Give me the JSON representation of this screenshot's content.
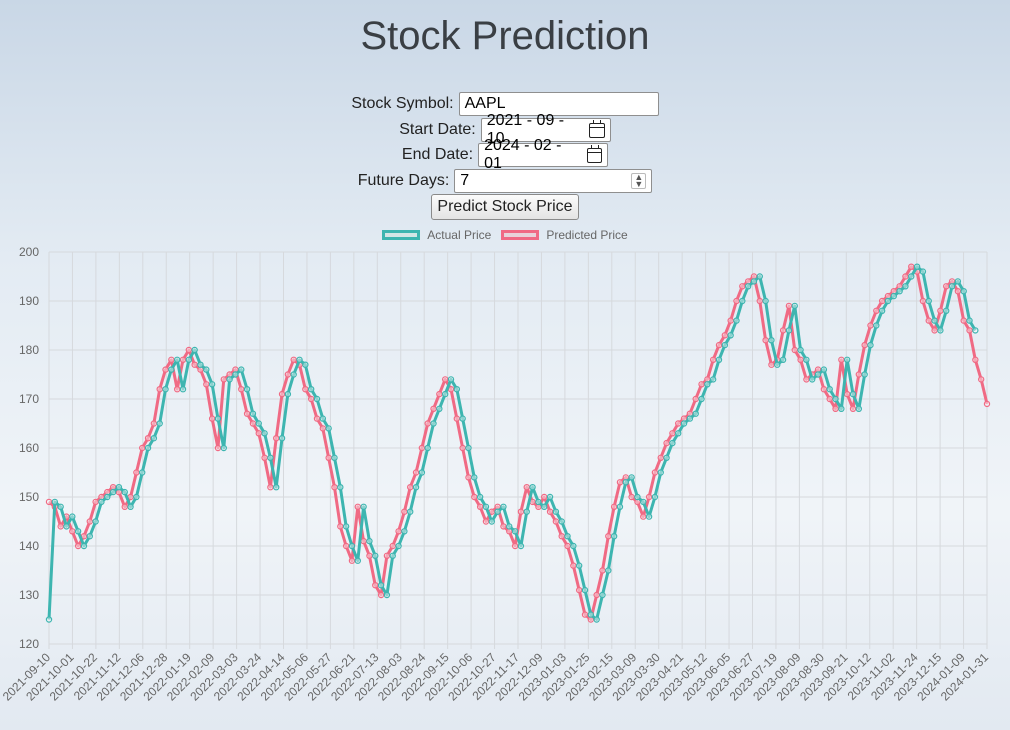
{
  "page": {
    "title": "Stock Prediction"
  },
  "form": {
    "symbol_label": "Stock Symbol:",
    "symbol_value": "AAPL",
    "start_label": "Start Date:",
    "start_value": "2021 - 09 - 10",
    "end_label": "End Date:",
    "end_value": "2024 - 02 - 01",
    "future_label": "Future Days:",
    "future_value": "7",
    "button_label": "Predict Stock Price"
  },
  "chart_data": {
    "type": "line",
    "y_range": [
      120,
      200
    ],
    "y_ticks": [
      120,
      130,
      140,
      150,
      160,
      170,
      180,
      190,
      200
    ],
    "x_tick_labels": [
      "2021-09-10",
      "2021-10-01",
      "2021-10-22",
      "2021-11-12",
      "2021-12-06",
      "2021-12-28",
      "2022-01-19",
      "2022-02-09",
      "2022-03-03",
      "2022-03-24",
      "2022-04-14",
      "2022-05-06",
      "2022-05-27",
      "2022-06-21",
      "2022-07-13",
      "2022-08-03",
      "2022-08-24",
      "2022-09-15",
      "2022-10-06",
      "2022-10-27",
      "2022-11-17",
      "2022-12-09",
      "2023-01-03",
      "2023-01-25",
      "2023-02-15",
      "2023-03-09",
      "2023-03-30",
      "2023-04-21",
      "2023-05-12",
      "2023-06-05",
      "2023-06-27",
      "2023-07-19",
      "2023-08-09",
      "2023-08-30",
      "2023-09-21",
      "2023-10-12",
      "2023-11-02",
      "2023-11-24",
      "2023-12-15",
      "2024-01-09",
      "2024-01-31"
    ],
    "grid": true,
    "legend_position": "top",
    "series": [
      {
        "name": "Actual Price",
        "color": "#3db5b0",
        "values": [
          125,
          149,
          148,
          144,
          146,
          143,
          140,
          142,
          145,
          149,
          150,
          151,
          152,
          151,
          148,
          150,
          155,
          160,
          162,
          165,
          172,
          176,
          178,
          172,
          178,
          180,
          177,
          176,
          173,
          166,
          160,
          174,
          175,
          176,
          172,
          167,
          165,
          163,
          158,
          152,
          162,
          171,
          175,
          178,
          177,
          172,
          170,
          166,
          164,
          158,
          152,
          144,
          140,
          137,
          148,
          141,
          138,
          132,
          130,
          138,
          140,
          143,
          147,
          152,
          155,
          160,
          165,
          168,
          171,
          174,
          172,
          166,
          160,
          154,
          150,
          148,
          145,
          147,
          148,
          144,
          143,
          140,
          147,
          152,
          149,
          148,
          150,
          147,
          145,
          142,
          140,
          136,
          131,
          126,
          125,
          130,
          135,
          142,
          148,
          153,
          154,
          150,
          149,
          146,
          150,
          155,
          158,
          161,
          163,
          165,
          166,
          167,
          170,
          173,
          174,
          178,
          181,
          183,
          186,
          190,
          193,
          194,
          195,
          190,
          182,
          177,
          178,
          184,
          189,
          180,
          178,
          174,
          175,
          176,
          172,
          170,
          168,
          178,
          171,
          168,
          175,
          181,
          185,
          188,
          190,
          191,
          192,
          193,
          195,
          197,
          196,
          190,
          186,
          184,
          188,
          193,
          194,
          192,
          186,
          184
        ],
        "x_start_index": 0
      },
      {
        "name": "Predicted Price",
        "color": "#f06a84",
        "values": [
          149,
          148,
          144,
          146,
          143,
          140,
          142,
          145,
          149,
          150,
          151,
          152,
          151,
          148,
          150,
          155,
          160,
          162,
          165,
          172,
          176,
          178,
          172,
          178,
          180,
          177,
          176,
          173,
          166,
          160,
          174,
          175,
          176,
          172,
          167,
          165,
          163,
          158,
          152,
          162,
          171,
          175,
          178,
          177,
          172,
          170,
          166,
          164,
          158,
          152,
          144,
          140,
          137,
          148,
          141,
          138,
          132,
          130,
          138,
          140,
          143,
          147,
          152,
          155,
          160,
          165,
          168,
          171,
          174,
          172,
          166,
          160,
          154,
          150,
          148,
          145,
          147,
          148,
          144,
          143,
          140,
          147,
          152,
          149,
          148,
          150,
          147,
          145,
          142,
          140,
          136,
          131,
          126,
          125,
          130,
          135,
          142,
          148,
          153,
          154,
          150,
          149,
          146,
          150,
          155,
          158,
          161,
          163,
          165,
          166,
          167,
          170,
          173,
          174,
          178,
          181,
          183,
          186,
          190,
          193,
          194,
          195,
          190,
          182,
          177,
          178,
          184,
          189,
          180,
          178,
          174,
          175,
          176,
          172,
          170,
          168,
          178,
          171,
          168,
          175,
          181,
          185,
          188,
          190,
          191,
          192,
          193,
          195,
          197,
          196,
          190,
          186,
          184,
          188,
          193,
          194,
          192,
          186,
          184,
          178,
          174,
          169
        ]
      }
    ]
  }
}
